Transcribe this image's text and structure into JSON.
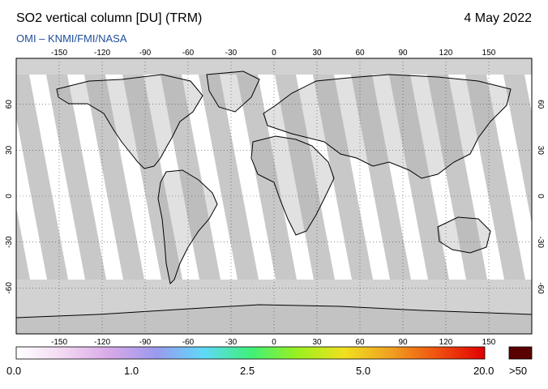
{
  "header": {
    "title": "SO2 vertical column [DU] (TRM)",
    "date": "4 May 2022",
    "credit": "OMI – KNMI/FMI/NASA"
  },
  "axes": {
    "lon_ticks": [
      "-150",
      "-120",
      "-90",
      "-60",
      "-30",
      "0",
      "30",
      "60",
      "90",
      "120",
      "150"
    ],
    "lat_ticks": [
      "60",
      "30",
      "0",
      "-30",
      "-60"
    ]
  },
  "colorbar": {
    "labels": [
      "0.0",
      "1.0",
      "2.5",
      "5.0",
      "20.0"
    ],
    "overflow_label": ">50",
    "overflow_color": "#5a0000",
    "stops": [
      "#ffffff",
      "#f2d8f2",
      "#d8a8e8",
      "#9a9aee",
      "#5fd8f8",
      "#3ff07a",
      "#9af020",
      "#f0e020",
      "#f0a020",
      "#f05010",
      "#e00000"
    ]
  },
  "colors": {
    "swath_gray": "#c8c8c8",
    "land_gray": "#a0a0a0",
    "background": "#ffffff"
  }
}
